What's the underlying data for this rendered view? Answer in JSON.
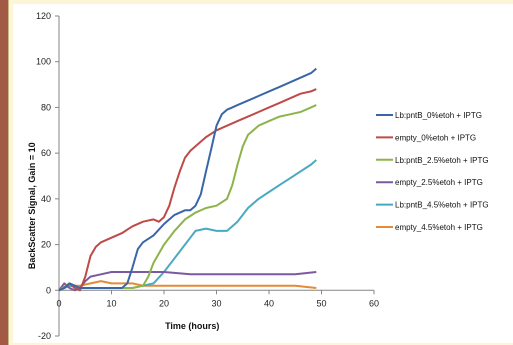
{
  "chart_data": {
    "type": "line",
    "title": "",
    "xlabel": "Time (hours)",
    "ylabel": "BackScatter Signal, Gain = 10",
    "xlim": [
      0,
      60
    ],
    "ylim": [
      -20,
      120
    ],
    "xticks": [
      0,
      10,
      20,
      30,
      40,
      50,
      60
    ],
    "yticks": [
      -20,
      0,
      20,
      40,
      60,
      80,
      100,
      120
    ],
    "grid": false,
    "legend_position": "right",
    "series": [
      {
        "name": "Lb:pntB_0%etoh + IPTG",
        "color": "#3a66a8",
        "x": [
          0,
          1,
          2,
          3,
          4,
          5,
          6,
          8,
          10,
          12,
          13,
          14,
          15,
          16,
          18,
          20,
          22,
          24,
          25,
          26,
          27,
          28,
          29,
          30,
          31,
          32,
          33,
          34,
          36,
          38,
          40,
          42,
          44,
          46,
          48,
          49
        ],
        "y": [
          0,
          1,
          3,
          2,
          1,
          1,
          1,
          1,
          1,
          1,
          3,
          10,
          18,
          21,
          24,
          29,
          33,
          35,
          35,
          37,
          42,
          52,
          62,
          72,
          77,
          79,
          80,
          81,
          83,
          85,
          87,
          89,
          91,
          93,
          95,
          97
        ]
      },
      {
        "name": "empty_0%etoh + IPTG",
        "color": "#bd4b48",
        "x": [
          0,
          1,
          2,
          3,
          4,
          5,
          6,
          7,
          8,
          10,
          12,
          14,
          16,
          18,
          19,
          20,
          21,
          22,
          23,
          24,
          25,
          26,
          28,
          30,
          32,
          34,
          36,
          38,
          40,
          42,
          44,
          46,
          48,
          49
        ],
        "y": [
          0,
          1,
          3,
          1,
          0,
          6,
          15,
          19,
          21,
          23,
          25,
          28,
          30,
          31,
          30,
          32,
          37,
          45,
          52,
          58,
          61,
          63,
          67,
          70,
          72,
          74,
          76,
          78,
          80,
          82,
          84,
          86,
          87,
          88
        ]
      },
      {
        "name": "Lb:pntB_2.5%etoh + IPTG",
        "color": "#8db44a",
        "x": [
          0,
          2,
          4,
          6,
          8,
          10,
          12,
          14,
          16,
          17,
          18,
          20,
          22,
          24,
          26,
          28,
          30,
          32,
          33,
          34,
          35,
          36,
          37,
          38,
          40,
          42,
          44,
          46,
          48,
          49
        ],
        "y": [
          0,
          3,
          1,
          1,
          1,
          1,
          1,
          1,
          2,
          6,
          12,
          20,
          26,
          31,
          34,
          36,
          37,
          40,
          46,
          55,
          63,
          68,
          70,
          72,
          74,
          76,
          77,
          78,
          80,
          81
        ]
      },
      {
        "name": "empty_2.5%etoh + IPTG",
        "color": "#7b5aa0",
        "x": [
          0,
          1,
          2,
          3,
          4,
          5,
          6,
          8,
          10,
          15,
          20,
          25,
          30,
          35,
          40,
          45,
          49
        ],
        "y": [
          0,
          3,
          1,
          0,
          1,
          4,
          6,
          7,
          8,
          8,
          8,
          7,
          7,
          7,
          7,
          7,
          8
        ]
      },
      {
        "name": "Lb:pntB_4.5%etoh + IPTG",
        "color": "#4aa9c2",
        "x": [
          0,
          2,
          4,
          6,
          8,
          10,
          12,
          14,
          16,
          18,
          20,
          22,
          24,
          25,
          26,
          28,
          30,
          32,
          34,
          36,
          38,
          40,
          42,
          44,
          46,
          48,
          49
        ],
        "y": [
          0,
          2,
          1,
          1,
          1,
          1,
          1,
          1,
          2,
          3,
          8,
          14,
          20,
          23,
          26,
          27,
          26,
          26,
          30,
          36,
          40,
          43,
          46,
          49,
          52,
          55,
          57
        ]
      },
      {
        "name": "empty_4.5%etoh + IPTG",
        "color": "#e58a36",
        "x": [
          0,
          2,
          4,
          6,
          8,
          10,
          12,
          14,
          16,
          18,
          20,
          25,
          30,
          35,
          40,
          45,
          49
        ],
        "y": [
          0,
          2,
          2,
          3,
          4,
          3,
          3,
          3,
          2,
          2,
          2,
          2,
          2,
          2,
          2,
          2,
          1
        ]
      }
    ]
  }
}
